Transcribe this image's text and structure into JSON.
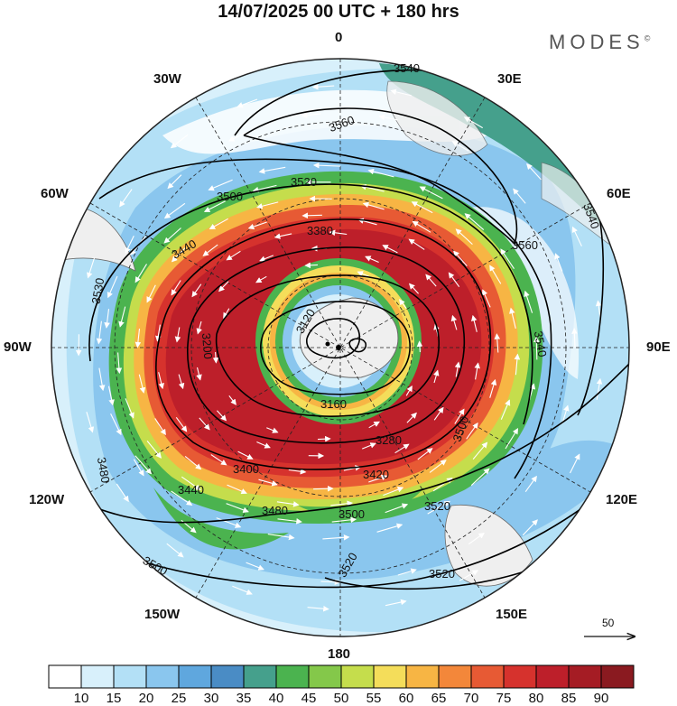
{
  "title": "14/07/2025  00 UTC  + 180 hrs",
  "logo": "MODES",
  "logo_mark": "©",
  "longitude_labels": {
    "lon_0": "0",
    "lon_30e": "30E",
    "lon_60e": "60E",
    "lon_90e": "90E",
    "lon_120e": "120E",
    "lon_150e": "150E",
    "lon_180": "180",
    "lon_150w": "150W",
    "lon_120w": "120W",
    "lon_90w": "90W",
    "lon_60w": "60W",
    "lon_30w": "30W"
  },
  "contour_labels": {
    "c3540_a": "3540",
    "c3560_a": "3560",
    "c3520_a": "3520",
    "c3500_a": "3500",
    "c3560_b": "3560",
    "c3540_b": "3540",
    "c3540_c": "3540",
    "c3440_a": "3440",
    "c3530_a": "3530",
    "c3380_a": "3380",
    "c3120_a": "3120",
    "c3200_a": "3200",
    "c3160_a": "3160",
    "c3280_a": "3280",
    "c3500_b": "3500",
    "c3420_a": "3420",
    "c3400_a": "3400",
    "c3440_b": "3440",
    "c3480_a": "3480",
    "c3480_b": "3480",
    "c3500_c": "3500",
    "c3520_b": "3520",
    "c3520_c": "3520",
    "c3520_d": "3520",
    "c3500_d": "3500"
  },
  "vector_reference": {
    "label": "50"
  },
  "colorbar": {
    "levels": [
      "10",
      "15",
      "20",
      "25",
      "30",
      "35",
      "40",
      "45",
      "50",
      "55",
      "60",
      "65",
      "70",
      "75",
      "80",
      "85",
      "90"
    ],
    "colors": [
      "#ffffff",
      "#d8f0fb",
      "#b3e0f6",
      "#8ac6ee",
      "#5fa7de",
      "#4a8cc5",
      "#45a08c",
      "#4bb34f",
      "#84c84a",
      "#c5dd4c",
      "#f4dd5a",
      "#f7b544",
      "#f3873a",
      "#e75a34",
      "#d6322d",
      "#bd1f2a",
      "#a51c24",
      "#8a1a20"
    ]
  },
  "style_colors": {
    "land": "#efefef",
    "coast": "#6b6b6b",
    "contour": "#000000",
    "wind_arrow": "#ffffff"
  }
}
